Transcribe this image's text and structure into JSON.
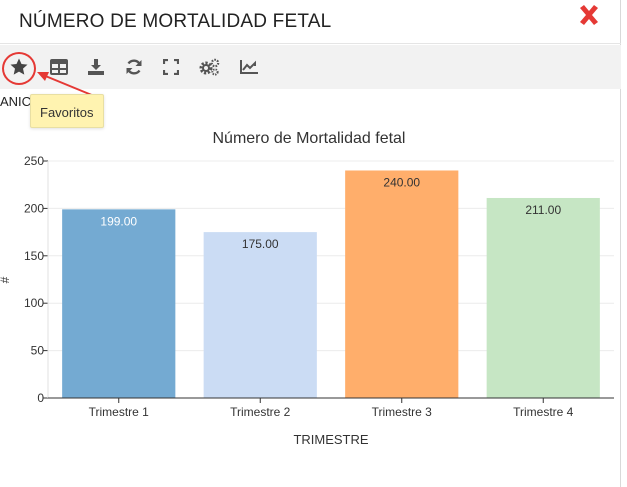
{
  "modal": {
    "title": "NÚMERO DE MORTALIDAD FETAL",
    "close_icon": "close-x-icon",
    "close_color": "#e53935"
  },
  "toolbar": {
    "items": [
      {
        "name": "favorites",
        "icon": "star-icon"
      },
      {
        "name": "table-view",
        "icon": "table-icon"
      },
      {
        "name": "download",
        "icon": "download-icon"
      },
      {
        "name": "refresh",
        "icon": "refresh-icon"
      },
      {
        "name": "fullscreen",
        "icon": "expand-icon"
      },
      {
        "name": "settings",
        "icon": "gears-icon"
      },
      {
        "name": "chart-type",
        "icon": "area-chart-icon"
      }
    ],
    "icon_color": "#555555",
    "highlight_color": "#e53935"
  },
  "cut_label": "ANIC",
  "tooltip": {
    "text": "Favoritos"
  },
  "chart_data": {
    "type": "bar",
    "title": "Número de Mortalidad fetal",
    "xlabel": "TRIMESTRE",
    "ylabel": "#",
    "categories": [
      "Trimestre 1",
      "Trimestre 2",
      "Trimestre 3",
      "Trimestre 4"
    ],
    "values": [
      199,
      175,
      240,
      211
    ],
    "value_labels": [
      "199.00",
      "175.00",
      "240.00",
      "211.00"
    ],
    "colors": [
      "#74aad2",
      "#cbdcf4",
      "#ffae6b",
      "#c6e6c4"
    ],
    "label_colors": [
      "#ffffff",
      "#333333",
      "#333333",
      "#333333"
    ],
    "ylim": [
      0,
      250
    ],
    "yticks": [
      0,
      50,
      100,
      150,
      200,
      250
    ],
    "grid": true
  }
}
